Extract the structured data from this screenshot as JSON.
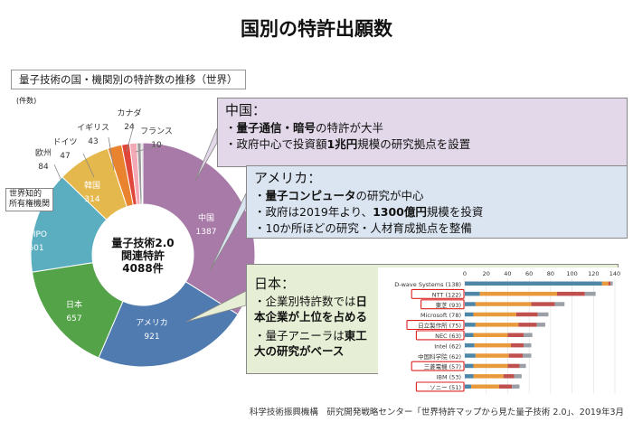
{
  "title": "国別の特許出願数",
  "subtitle": "量子技術の国・機関別の特許数の推移（世界）",
  "unit": "(件数)",
  "center_label": [
    "量子技術2.0",
    "関連特許",
    "4088件"
  ],
  "wipo_note": [
    "世界知的",
    "所有権機関"
  ],
  "callouts": {
    "china": {
      "head": "中国：",
      "bullets": [
        [
          "",
          "量子通信・暗号",
          "の特許が大半"
        ],
        [
          "政府中心で投資額",
          "1兆円",
          "規模の研究拠点を設置"
        ]
      ]
    },
    "us": {
      "head": "アメリカ：",
      "bullets": [
        [
          "",
          "量子コンピュータ",
          "の研究が中心"
        ],
        [
          "政府は2019年より、",
          "1300億円",
          "規模を投資"
        ],
        [
          "10か所ほどの研究・人材育成拠点を整備",
          "",
          ""
        ]
      ]
    },
    "japan": {
      "head": "日本：",
      "bullets": [
        [
          "企業別特許数では",
          "日本企業が上位を占める",
          ""
        ],
        [
          "量子アニーラは",
          "東工大の研究がベース",
          ""
        ]
      ]
    }
  },
  "source": "科学技術振興機構　研究開発戦略センター「世界特許マップから見た量子技術 2.0」、2019年3月",
  "chart_data": [
    {
      "type": "pie",
      "title": "量子技術2.0 関連特許 4088件",
      "categories": [
        "中国",
        "アメリカ",
        "日本",
        "WIPO",
        "韓国",
        "欧州",
        "ドイツ",
        "イギリス",
        "カナダ",
        "フランス"
      ],
      "values": [
        1387,
        921,
        657,
        601,
        314,
        84,
        47,
        43,
        24,
        10
      ],
      "colors": [
        "#a87aa8",
        "#4f7bb0",
        "#55a349",
        "#5aaec0",
        "#e5b84d",
        "#e9832e",
        "#e0463a",
        "#f2a8b5",
        "#9b9b9b",
        "#c9c9c9"
      ]
    },
    {
      "type": "bar",
      "orientation": "horizontal",
      "stacked": true,
      "categories": [
        "D-wave Systems (138)",
        "NTT (122)",
        "東芝 (93)",
        "Microsoft (78)",
        "日立製作所 (75)",
        "NEC (63)",
        "Intel (62)",
        "中国科学院 (62)",
        "三菱電機 (57)",
        "IBM (53)",
        "ソニー (51)"
      ],
      "highlighted": [
        "NTT (122)",
        "東芝 (93)",
        "日立製作所 (75)",
        "NEC (63)",
        "三菱電機 (57)",
        "ソニー (51)"
      ],
      "xticks": [
        0,
        20,
        40,
        60,
        80,
        100,
        120,
        140
      ],
      "xlim": [
        0,
        140
      ],
      "series": [
        {
          "name": "seg1",
          "color": "#4e86a8",
          "values": [
            128,
            14,
            10,
            8,
            10,
            8,
            9,
            10,
            8,
            8,
            6
          ]
        },
        {
          "name": "seg2",
          "color": "#e89a3c",
          "values": [
            6,
            72,
            52,
            40,
            40,
            32,
            34,
            31,
            32,
            28,
            26
          ]
        },
        {
          "name": "seg3",
          "color": "#c0504d",
          "values": [
            2,
            26,
            22,
            20,
            17,
            15,
            12,
            13,
            11,
            10,
            12
          ]
        },
        {
          "name": "seg4",
          "color": "#9aa0a6",
          "values": [
            2,
            10,
            9,
            10,
            8,
            8,
            7,
            8,
            6,
            7,
            7
          ]
        }
      ]
    }
  ]
}
